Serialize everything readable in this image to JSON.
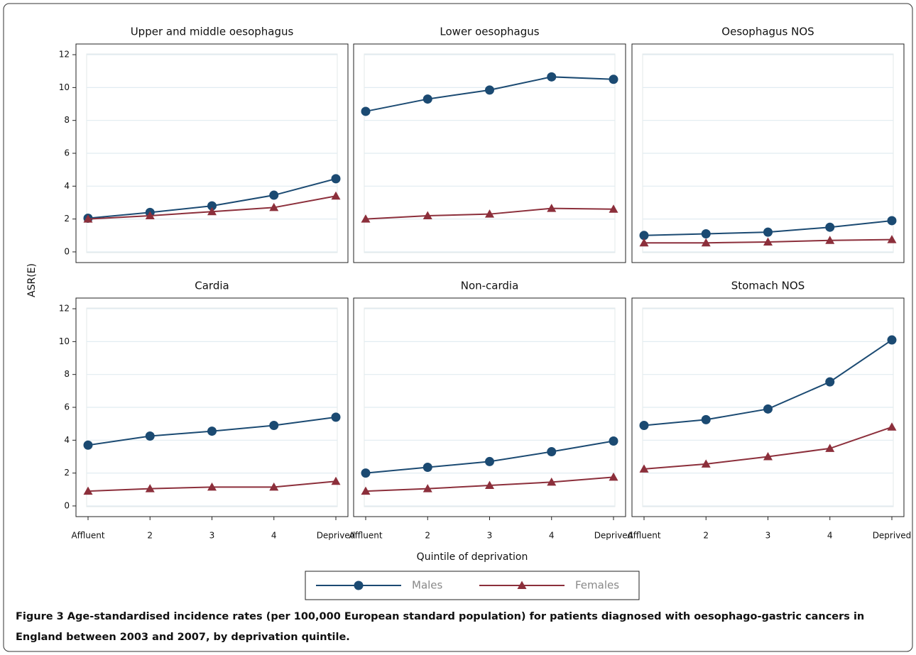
{
  "chart_data": [
    {
      "type": "line",
      "title": "Upper and middle oesophagus",
      "categories": [
        null,
        null,
        null,
        null,
        null
      ],
      "series": [
        {
          "values": [
            2.05,
            2.4,
            2.8,
            3.45,
            4.45
          ]
        },
        {
          "values": [
            2.0,
            2.2,
            2.45,
            2.7,
            3.4
          ]
        }
      ],
      "ylim": [
        -0.65,
        12.65
      ],
      "yticks": [
        0,
        2,
        4,
        6,
        8,
        10,
        12
      ],
      "grid": true
    },
    {
      "type": "line",
      "title": "Lower oesophagus",
      "categories": [
        null,
        null,
        null,
        null,
        null
      ],
      "series": [
        {
          "values": [
            8.55,
            9.3,
            9.85,
            10.65,
            10.5
          ]
        },
        {
          "values": [
            2.0,
            2.2,
            2.3,
            2.65,
            2.6
          ]
        }
      ],
      "ylim": [
        -0.65,
        12.65
      ],
      "yticks": [
        0,
        2,
        4,
        6,
        8,
        10,
        12
      ],
      "grid": true
    },
    {
      "type": "line",
      "title": "Oesophagus NOS",
      "categories": [
        null,
        null,
        null,
        null,
        null
      ],
      "series": [
        {
          "values": [
            1.0,
            1.1,
            1.2,
            1.5,
            1.9
          ]
        },
        {
          "values": [
            0.55,
            0.55,
            0.6,
            0.7,
            0.75
          ]
        }
      ],
      "ylim": [
        -0.65,
        12.65
      ],
      "yticks": [
        0,
        2,
        4,
        6,
        8,
        10,
        12
      ],
      "grid": true
    },
    {
      "type": "line",
      "title": "Cardia",
      "categories": [
        "Affluent",
        "2",
        "3",
        "4",
        "Deprived"
      ],
      "series": [
        {
          "values": [
            3.7,
            4.25,
            4.55,
            4.9,
            5.4
          ]
        },
        {
          "values": [
            0.9,
            1.05,
            1.15,
            1.15,
            1.5
          ]
        }
      ],
      "ylim": [
        -0.65,
        12.65
      ],
      "yticks": [
        0,
        2,
        4,
        6,
        8,
        10,
        12
      ],
      "grid": true
    },
    {
      "type": "line",
      "title": "Non-cardia",
      "categories": [
        "Affluent",
        "2",
        "3",
        "4",
        "Deprived"
      ],
      "series": [
        {
          "values": [
            2.0,
            2.35,
            2.7,
            3.3,
            3.95
          ]
        },
        {
          "values": [
            0.9,
            1.05,
            1.25,
            1.45,
            1.75
          ]
        }
      ],
      "ylim": [
        -0.65,
        12.65
      ],
      "yticks": [
        0,
        2,
        4,
        6,
        8,
        10,
        12
      ],
      "grid": true
    },
    {
      "type": "line",
      "title": "Stomach NOS",
      "categories": [
        "Affluent",
        "2",
        "3",
        "4",
        "Deprived"
      ],
      "series": [
        {
          "values": [
            4.9,
            5.25,
            5.9,
            7.55,
            10.1
          ]
        },
        {
          "values": [
            2.25,
            2.55,
            3.0,
            3.5,
            4.8
          ]
        }
      ],
      "ylim": [
        -0.65,
        12.65
      ],
      "yticks": [
        0,
        2,
        4,
        6,
        8,
        10,
        12
      ],
      "grid": true
    }
  ],
  "y_label": "ASR(E)",
  "x_label": "Quintile of deprivation",
  "legend": {
    "position": "bottom",
    "entries": [
      {
        "name": "Males",
        "color": "#1b4a72",
        "marker": "circle"
      },
      {
        "name": "Females",
        "color": "#8c2f3b",
        "marker": "triangle"
      }
    ]
  },
  "caption": {
    "label": "Figure 3",
    "text": "Age-standardised incidence rates (per 100,000 European standard population) for patients diagnosed with oesophago-gastric cancers in England between 2003 and 2007, by deprivation quintile."
  }
}
